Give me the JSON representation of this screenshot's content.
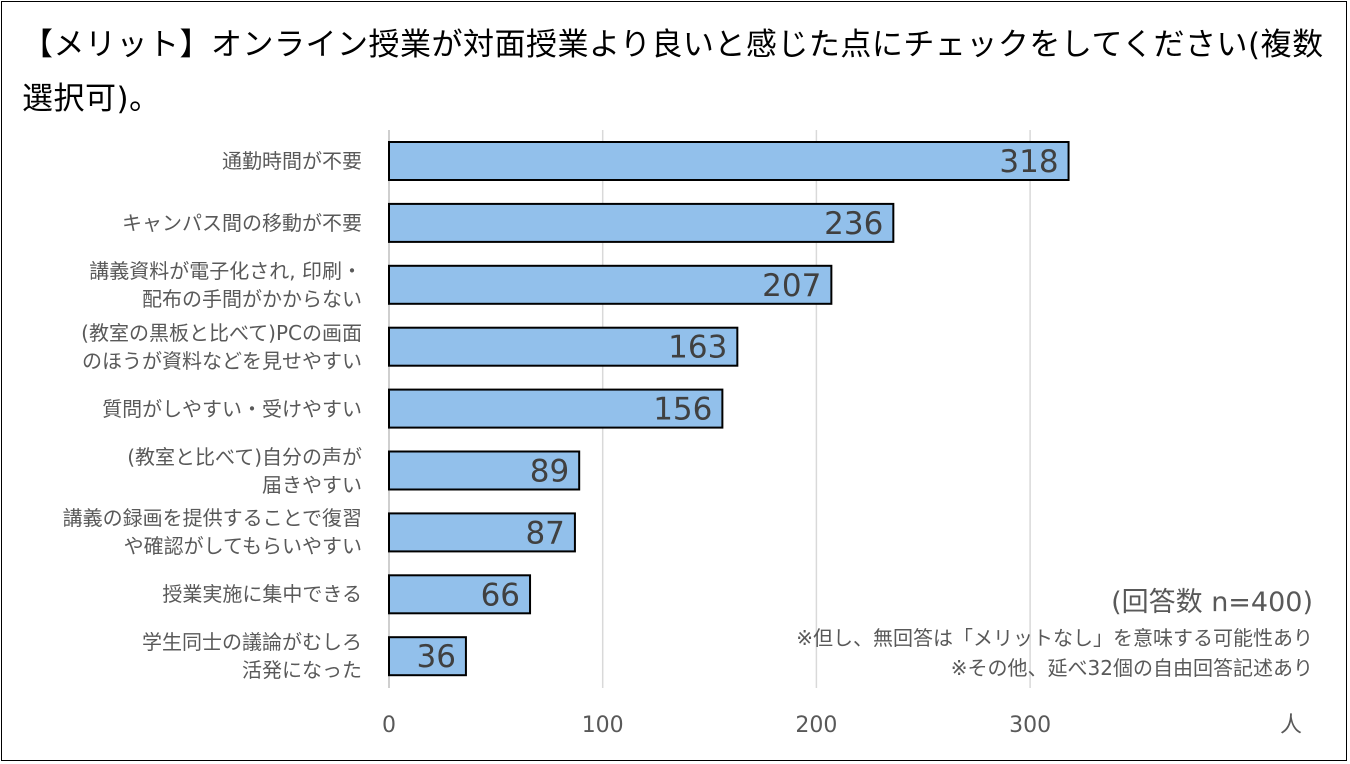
{
  "chart_data": {
    "type": "bar",
    "orientation": "horizontal",
    "title": "【メリット】オンライン授業が対面授業より良いと感じた点にチェックをしてください(複数選択可)。",
    "categories": [
      "通勤時間が不要",
      "キャンパス間の移動が不要",
      "講義資料が電子化され, 印刷・\n配布の手間がかからない",
      "(教室の黒板と比べて)PCの画面\nのほうが資料などを見せやすい",
      "質問がしやすい・受けやすい",
      "(教室と比べて)自分の声が\n届きやすい",
      "講義の録画を提供することで復習\nや確認がしてもらいやすい",
      "授業実施に集中できる",
      "学生同士の議論がむしろ\n活発になった"
    ],
    "values": [
      318,
      236,
      207,
      163,
      156,
      89,
      87,
      66,
      36
    ],
    "xlabel": "人",
    "xticks": [
      "0",
      "100",
      "200",
      "300"
    ],
    "xlim": [
      0,
      400
    ],
    "grid": true,
    "bar_color": "#92C0EB",
    "notes": {
      "n": "(回答数 n=400)",
      "note1": "※但し、無回答は「メリットなし」を意味する可能性あり",
      "note2": "※その他、延べ32個の自由回答記述あり"
    }
  }
}
